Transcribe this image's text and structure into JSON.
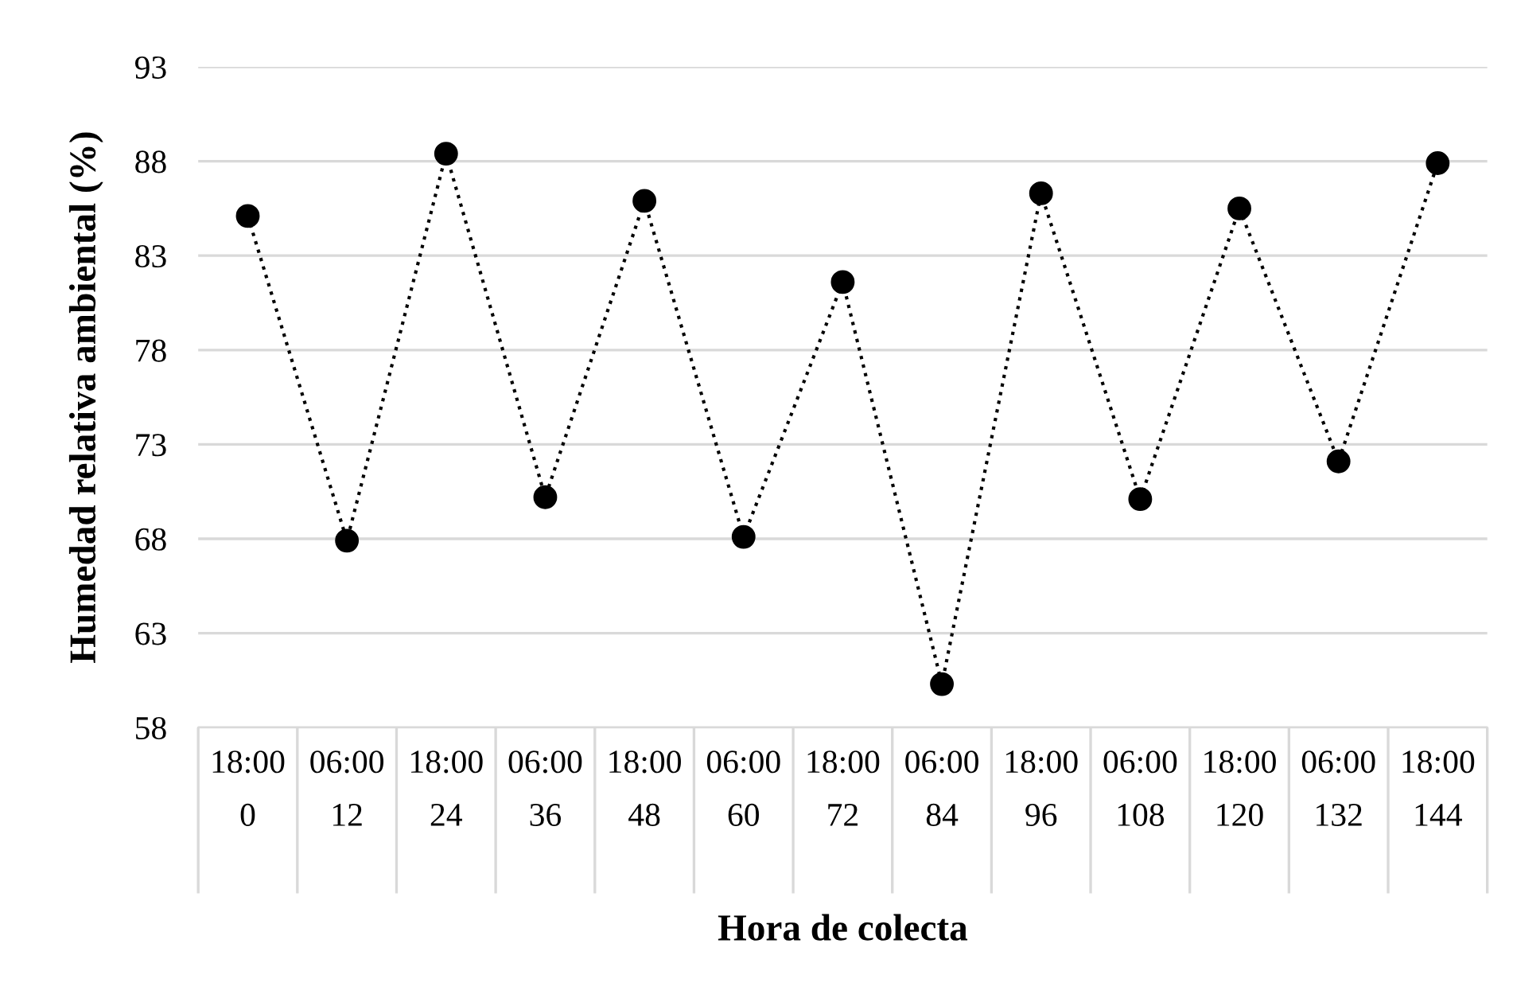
{
  "chart_data": {
    "type": "line",
    "xlabel": "Hora de colecta",
    "ylabel": "Humedad relativa ambiental (%)",
    "categories": [
      "18:00\n0",
      "06:00\n12",
      "18:00\n24",
      "06:00\n36",
      "18:00\n48",
      "06:00\n60",
      "18:00\n72",
      "06:00\n84",
      "18:00\n96",
      "06:00\n108",
      "18:00\n120",
      "06:00\n132",
      "18:00\n144"
    ],
    "series": [
      {
        "color": "#000000",
        "values": [
          85.1,
          67.9,
          88.4,
          70.2,
          85.9,
          68.1,
          81.6,
          60.3,
          86.3,
          70.1,
          85.5,
          72.1,
          87.9
        ]
      }
    ],
    "ylim": [
      58,
      93
    ],
    "yticks": [
      58,
      63,
      68,
      73,
      78,
      83,
      88,
      93
    ],
    "grid": "y",
    "marker": "circle",
    "line_style": "dotted"
  }
}
